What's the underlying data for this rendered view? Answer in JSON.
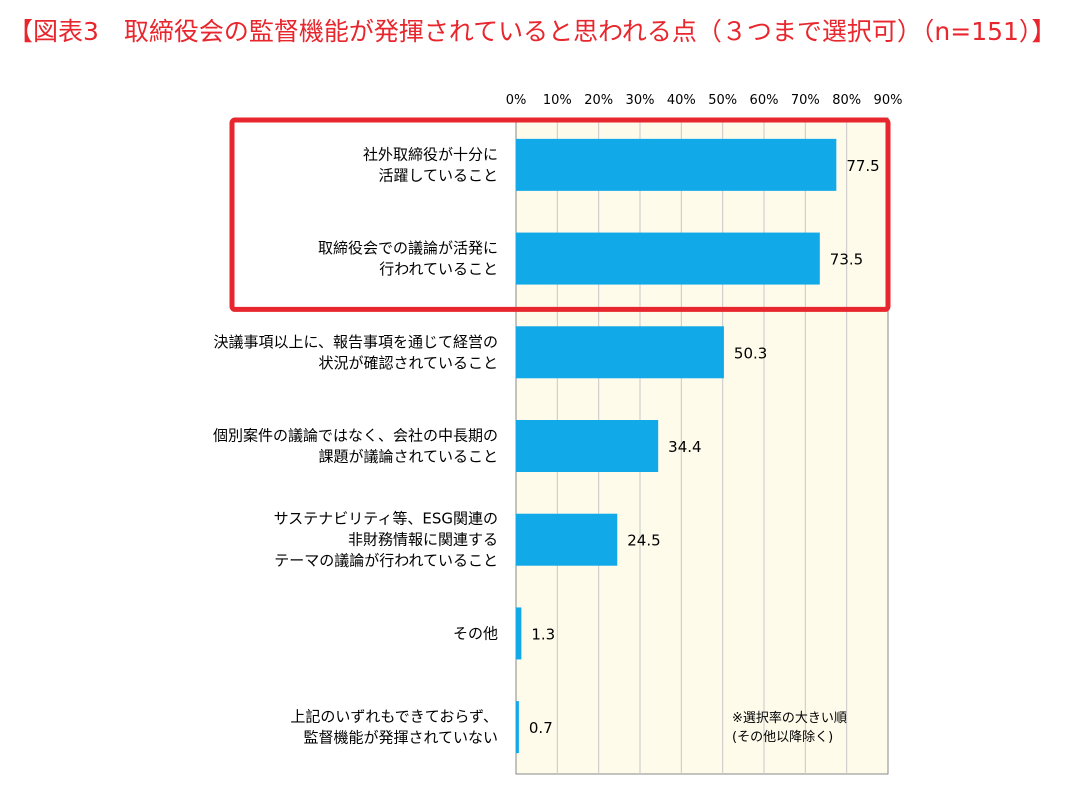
{
  "title": "【図表3　取締役会の監督機能が発揮されていると思われる点（３つまで選択可）（n=151）】",
  "chart_data": {
    "type": "bar",
    "orientation": "horizontal",
    "xlim": [
      0,
      90
    ],
    "x_ticks": [
      "0%",
      "10%",
      "20%",
      "30%",
      "40%",
      "50%",
      "60%",
      "70%",
      "80%",
      "90%"
    ],
    "categories": [
      [
        "社外取締役が十分に",
        "活躍していること"
      ],
      [
        "取締役会での議論が活発に",
        "行われていること"
      ],
      [
        "決議事項以上に、報告事項を通じて経営の",
        "状況が確認されていること"
      ],
      [
        "個別案件の議論ではなく、会社の中長期の",
        "課題が議論されていること"
      ],
      [
        "サステナビリティ等、ESG関連の",
        "非財務情報に関連する",
        "テーマの議論が行われていること"
      ],
      [
        "その他"
      ],
      [
        "上記のいずれもできておらず、",
        "監督機能が発揮されていない"
      ]
    ],
    "values": [
      77.5,
      73.5,
      50.3,
      34.4,
      24.5,
      1.3,
      0.7
    ],
    "value_labels": [
      "77.5",
      "73.5",
      "50.3",
      "34.4",
      "24.5",
      "1.3",
      "0.7"
    ],
    "highlighted": [
      0,
      1
    ],
    "note": [
      "※選択率の大きい順",
      "(その他以降除く)"
    ],
    "colors": {
      "bar": "#12a9e9",
      "plot_bg": "#fefbeb",
      "highlight": "#e8262d",
      "grid": "#c8c8c8",
      "title": "#e8262d"
    }
  }
}
